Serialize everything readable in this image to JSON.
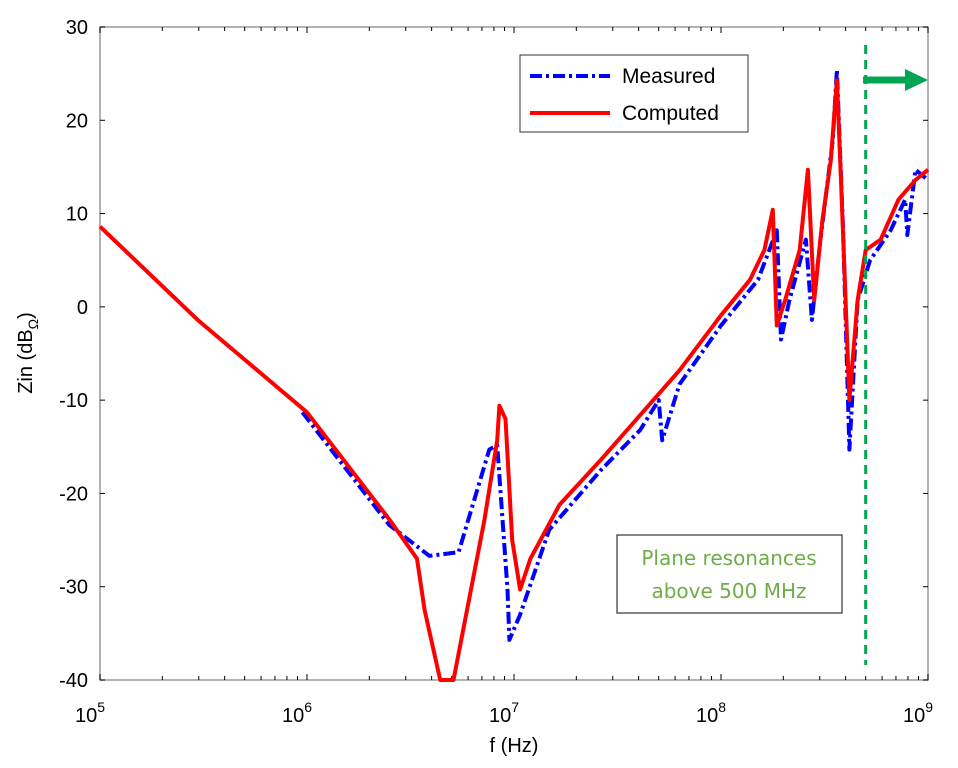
{
  "chart_data": {
    "type": "line",
    "title": "",
    "xlabel": "f (Hz)",
    "ylabel_main": "Zin (dB",
    "ylabel_sub": "Ω",
    "ylabel_close": ")",
    "xscale": "log",
    "xlim": [
      100000,
      1000000000
    ],
    "ylim": [
      -40,
      30
    ],
    "x_tick_labels": [
      {
        "base": "10",
        "exp": "5",
        "value": 100000
      },
      {
        "base": "10",
        "exp": "6",
        "value": 1000000
      },
      {
        "base": "10",
        "exp": "7",
        "value": 10000000
      },
      {
        "base": "10",
        "exp": "8",
        "value": 100000000
      },
      {
        "base": "10",
        "exp": "9",
        "value": 1000000000
      }
    ],
    "y_ticks": [
      "30",
      "20",
      "10",
      "0",
      "-10",
      "-20",
      "-30",
      "-40"
    ],
    "grid": false,
    "legend_position": "top-right",
    "series": [
      {
        "name": "Measured",
        "color": "#0000ff",
        "style": "dash-dot",
        "x": [
          950000.0,
          2500000.0,
          3900000.0,
          5400000.0,
          7600000.0,
          8300000.0,
          9300000.0,
          9500000.0,
          10700000.0,
          14800000.0,
          26300000.0,
          40700000.0,
          50000000.0,
          52000000.0,
          63000000.0,
          100000000.0,
          151000000.0,
          186000000.0,
          195000000.0,
          214000000.0,
          257000000.0,
          275000000.0,
          302000000.0,
          347000000.0,
          363000000.0,
          389000000.0,
          417000000.0,
          457000000.0,
          525000000.0,
          660000000.0,
          776000000.0,
          794000000.0,
          870000000.0,
          1000000000.0
        ],
        "y": [
          -11.3,
          -23.4,
          -26.7,
          -26.3,
          -15.3,
          -14.8,
          -30.3,
          -35.7,
          -33,
          -23.9,
          -17.5,
          -13.2,
          -10,
          -14.3,
          -8.3,
          -2,
          2.9,
          8.2,
          -3.5,
          0.7,
          7.2,
          -1.4,
          7.2,
          17.9,
          25.4,
          8.2,
          -15.3,
          0.7,
          5,
          8.2,
          11.5,
          7.7,
          14.7,
          13.6
        ]
      },
      {
        "name": "Computed",
        "color": "#ff0000",
        "style": "solid",
        "x": [
          100000.0,
          300000.0,
          1000000.0,
          2500000.0,
          3400000.0,
          3700000.0,
          4400000.0,
          5100000.0,
          6200000.0,
          7200000.0,
          8300000.0,
          8500000.0,
          9100000.0,
          9800000.0,
          10700000.0,
          12000000.0,
          16600000.0,
          26300000.0,
          40700000.0,
          63000000.0,
          100000000.0,
          138000000.0,
          162000000.0,
          178000000.0,
          186000000.0,
          204000000.0,
          240000000.0,
          263000000.0,
          282000000.0,
          309000000.0,
          339000000.0,
          363000000.0,
          380000000.0,
          417000000.0,
          457000000.0,
          500000000.0,
          590000000.0,
          720000000.0,
          870000000.0,
          1000000000.0
        ],
        "y": [
          8.6,
          -1.5,
          -11.3,
          -22.8,
          -27,
          -32.5,
          -40,
          -40,
          -30.3,
          -22.8,
          -14.3,
          -10.6,
          -12,
          -25,
          -30.3,
          -27,
          -21.2,
          -16.4,
          -11.6,
          -6.8,
          -0.9,
          2.9,
          6.1,
          10.4,
          -2,
          0.7,
          6.1,
          14.7,
          0.7,
          9.3,
          15.7,
          24.3,
          13.6,
          -10,
          0.7,
          6.1,
          7.2,
          11.5,
          13.6,
          14.7
        ]
      }
    ],
    "annotations": {
      "text_line1": "Plane resonances",
      "text_line2": "above 500 MHz",
      "marker_frequency": 500000000,
      "marker_color": "#00a651"
    }
  }
}
